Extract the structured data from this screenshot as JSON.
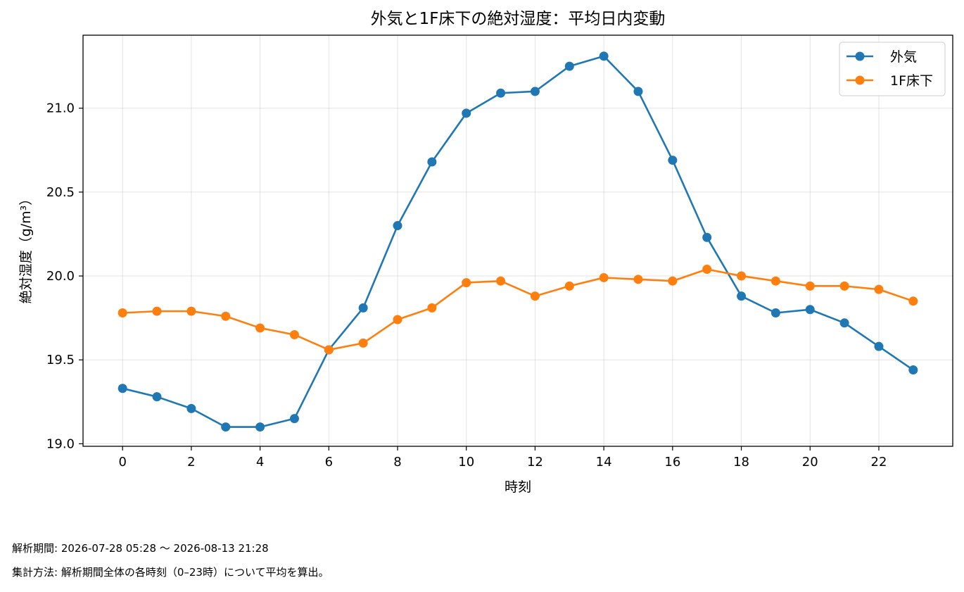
{
  "chart_data": {
    "type": "line",
    "title": "外気と1F床下の絶対湿度：平均日内変動",
    "xlabel": "時刻",
    "ylabel": "絶対湿度（g/m³）",
    "x": [
      0,
      1,
      2,
      3,
      4,
      5,
      6,
      7,
      8,
      9,
      10,
      11,
      12,
      13,
      14,
      15,
      16,
      17,
      18,
      19,
      20,
      21,
      22,
      23
    ],
    "xticks": [
      0,
      2,
      4,
      6,
      8,
      10,
      12,
      14,
      16,
      18,
      20,
      22
    ],
    "xtick_labels": [
      "0",
      "2",
      "4",
      "6",
      "8",
      "10",
      "12",
      "14",
      "16",
      "18",
      "20",
      "22"
    ],
    "xlim": [
      -1.15,
      24.15
    ],
    "ylim": [
      18.985,
      21.435
    ],
    "yticks": [
      19.0,
      19.5,
      20.0,
      20.5,
      21.0
    ],
    "ytick_labels": [
      "19.0",
      "19.5",
      "20.0",
      "20.5",
      "21.0"
    ],
    "grid": true,
    "legend_position": "top-right",
    "series": [
      {
        "name": "外気",
        "color": "#1f77b4",
        "values": [
          19.33,
          19.28,
          19.21,
          19.1,
          19.1,
          19.15,
          19.56,
          19.81,
          20.3,
          20.68,
          20.97,
          21.09,
          21.1,
          21.25,
          21.31,
          21.1,
          20.69,
          20.23,
          19.88,
          19.78,
          19.8,
          19.72,
          19.58,
          19.44
        ]
      },
      {
        "name": "1F床下",
        "color": "#ff7f0e",
        "values": [
          19.78,
          19.79,
          19.79,
          19.76,
          19.69,
          19.65,
          19.56,
          19.6,
          19.74,
          19.81,
          19.96,
          19.97,
          19.88,
          19.94,
          19.99,
          19.98,
          19.97,
          20.04,
          20.0,
          19.97,
          19.94,
          19.94,
          19.92,
          19.85
        ]
      }
    ]
  },
  "footnotes": {
    "period": "解析期間: 2026-07-28 05:28 〜 2026-08-13 21:28",
    "method": "集計方法: 解析期間全体の各時刻（0–23時）について平均を算出。"
  }
}
